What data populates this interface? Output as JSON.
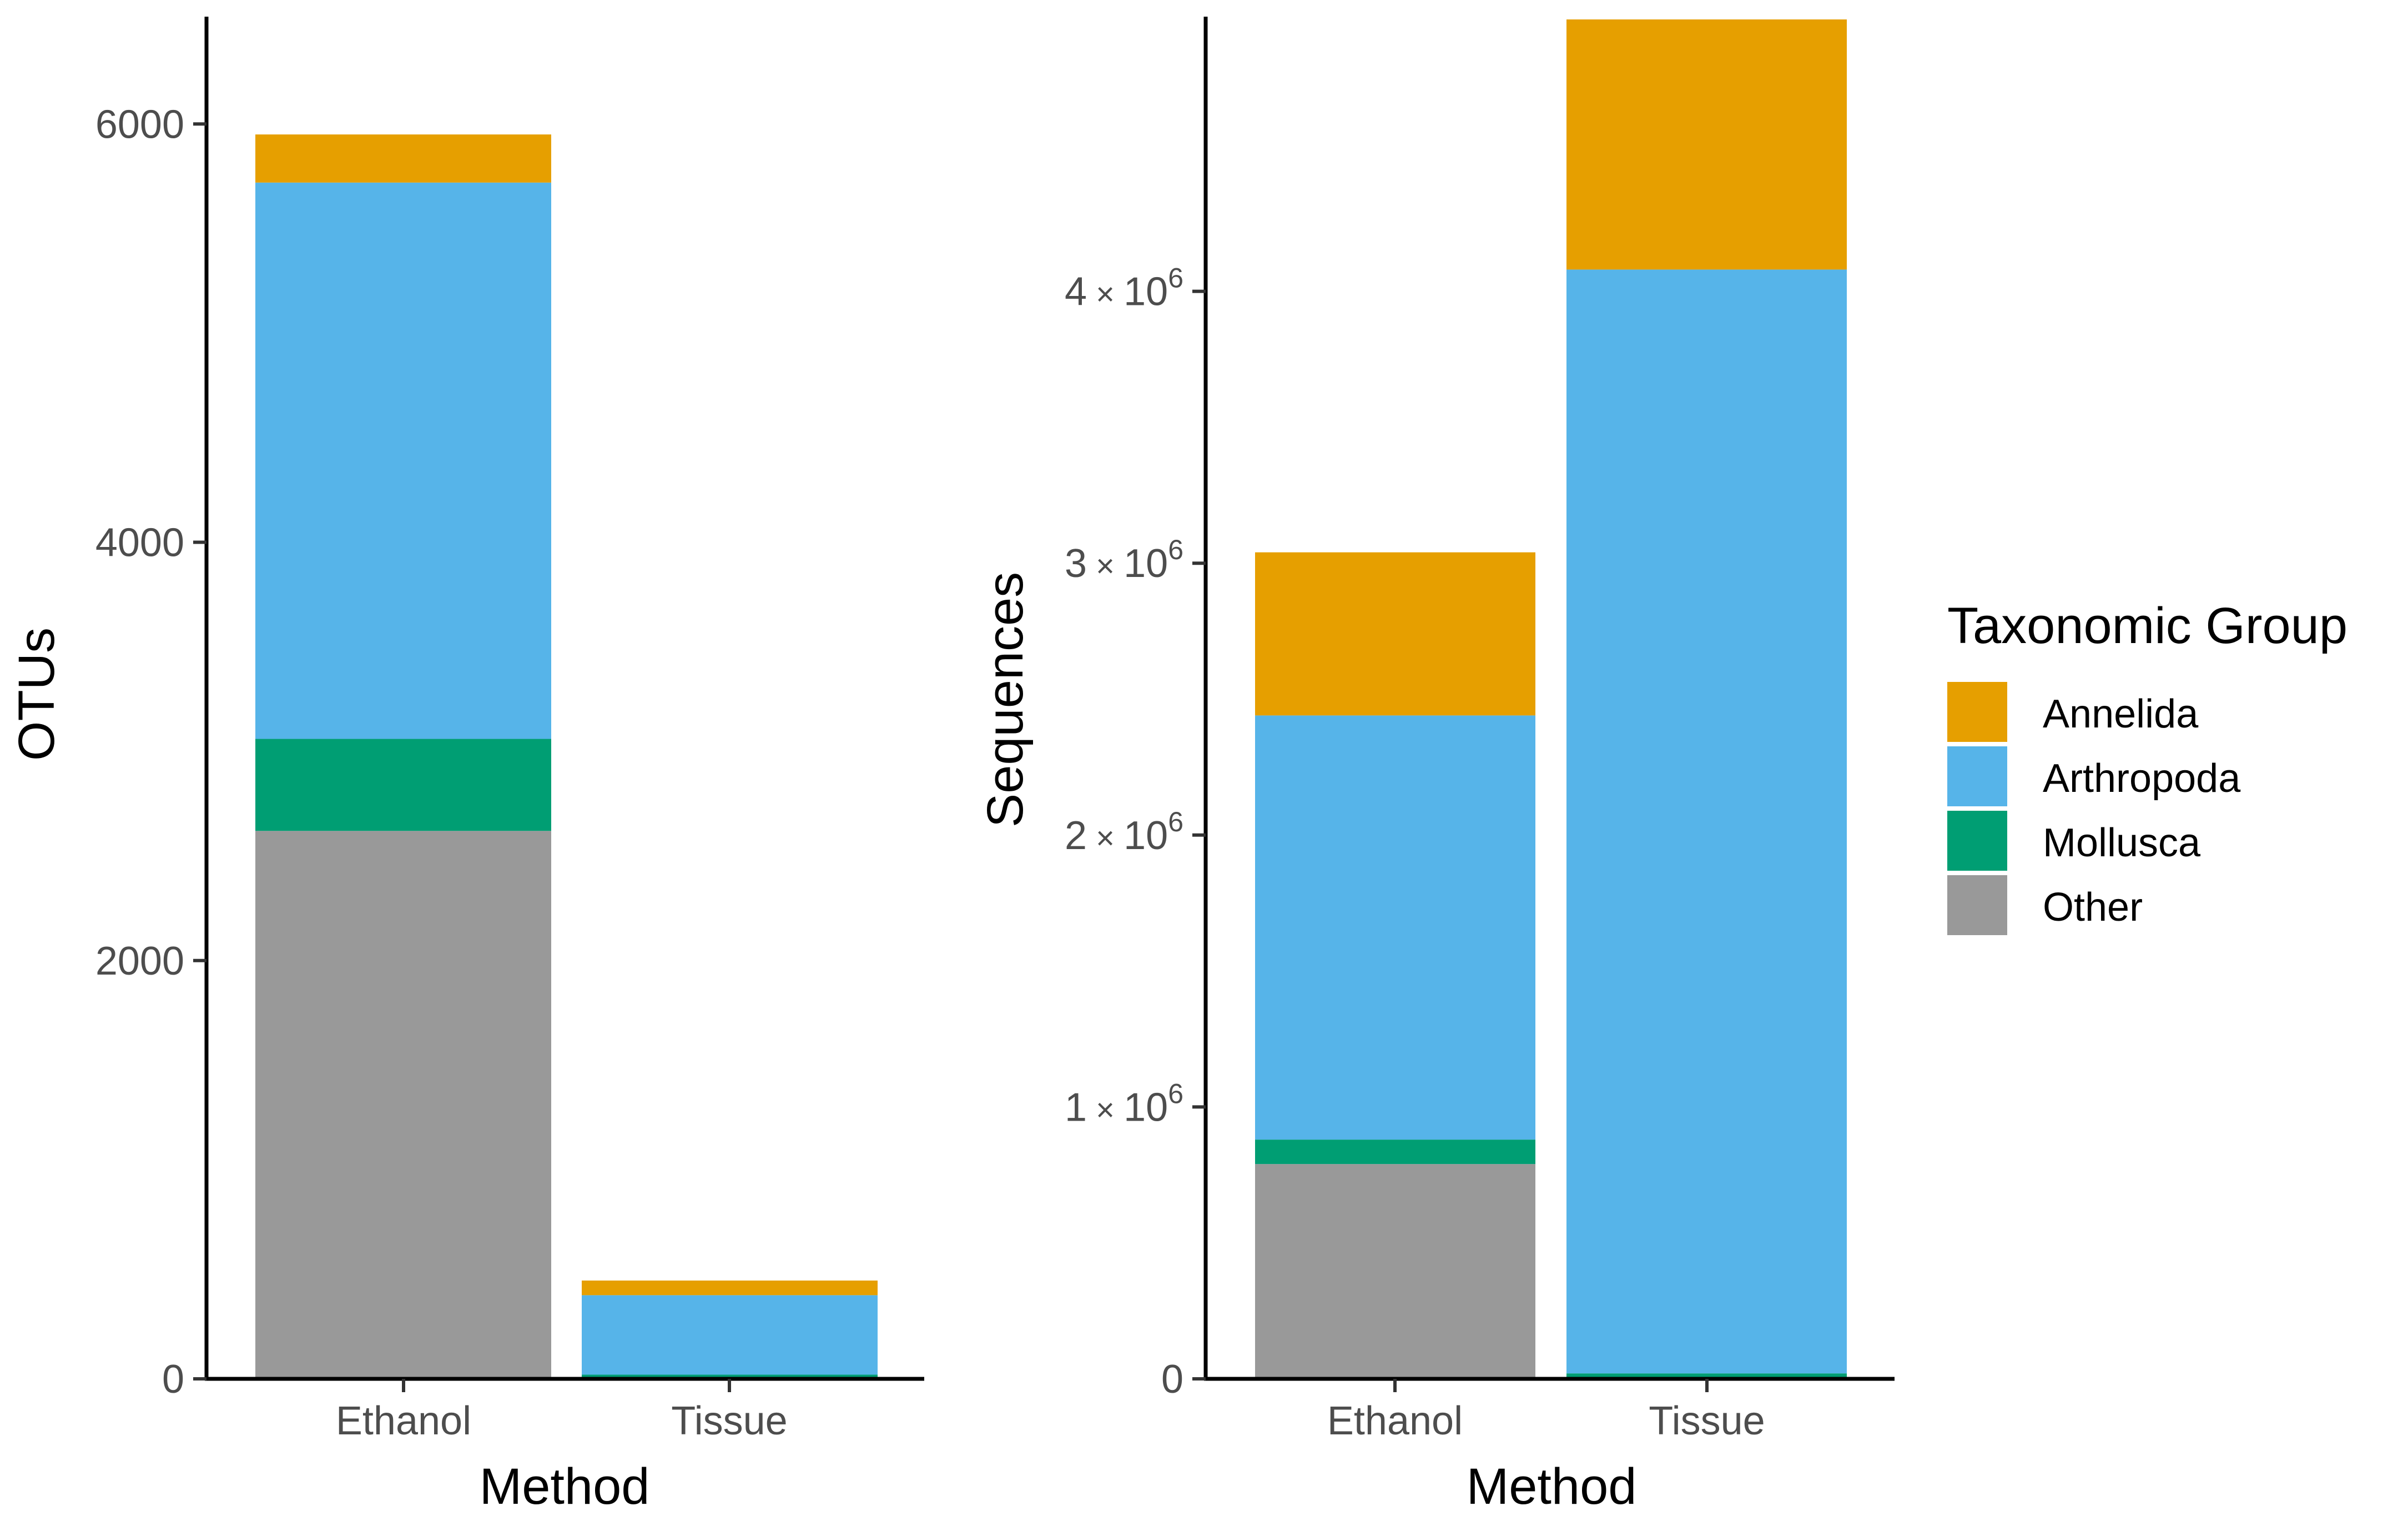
{
  "chart_data": [
    {
      "type": "bar",
      "stacked": true,
      "title": "",
      "xlabel": "Method",
      "ylabel": "OTUs",
      "categories": [
        "Ethanol",
        "Tissue"
      ],
      "ylim": [
        0,
        6500
      ],
      "yticks": [
        0,
        2000,
        4000,
        6000
      ],
      "ytick_labels": [
        "0",
        "2000",
        "4000",
        "6000"
      ],
      "series": [
        {
          "name": "Other",
          "values": [
            2620,
            0
          ]
        },
        {
          "name": "Mollusca",
          "values": [
            440,
            20
          ]
        },
        {
          "name": "Arthropoda",
          "values": [
            2660,
            380
          ]
        },
        {
          "name": "Annelida",
          "values": [
            230,
            70
          ]
        }
      ]
    },
    {
      "type": "bar",
      "stacked": true,
      "title": "",
      "xlabel": "Method",
      "ylabel": "Sequences",
      "categories": [
        "Ethanol",
        "Tissue"
      ],
      "ylim": [
        0,
        5000000
      ],
      "yticks": [
        0,
        1000000,
        2000000,
        3000000,
        4000000
      ],
      "ytick_labels": [
        {
          "mantissa": "0",
          "base": "",
          "exp": ""
        },
        {
          "mantissa": "1",
          "base": "10",
          "exp": "6"
        },
        {
          "mantissa": "2",
          "base": "10",
          "exp": "6"
        },
        {
          "mantissa": "3",
          "base": "10",
          "exp": "6"
        },
        {
          "mantissa": "4",
          "base": "10",
          "exp": "6"
        }
      ],
      "series": [
        {
          "name": "Other",
          "values": [
            790000,
            0
          ]
        },
        {
          "name": "Mollusca",
          "values": [
            90000,
            20000
          ]
        },
        {
          "name": "Arthropoda",
          "values": [
            1560000,
            4060000
          ]
        },
        {
          "name": "Annelida",
          "values": [
            600000,
            920000
          ]
        }
      ]
    }
  ],
  "legend": {
    "title": "Taxonomic Group",
    "position": "right",
    "items": [
      {
        "name": "Annelida",
        "color": "#E69F00"
      },
      {
        "name": "Arthropoda",
        "color": "#56B4E9"
      },
      {
        "name": "Mollusca",
        "color": "#009E73"
      },
      {
        "name": "Other",
        "color": "#999999"
      }
    ]
  }
}
